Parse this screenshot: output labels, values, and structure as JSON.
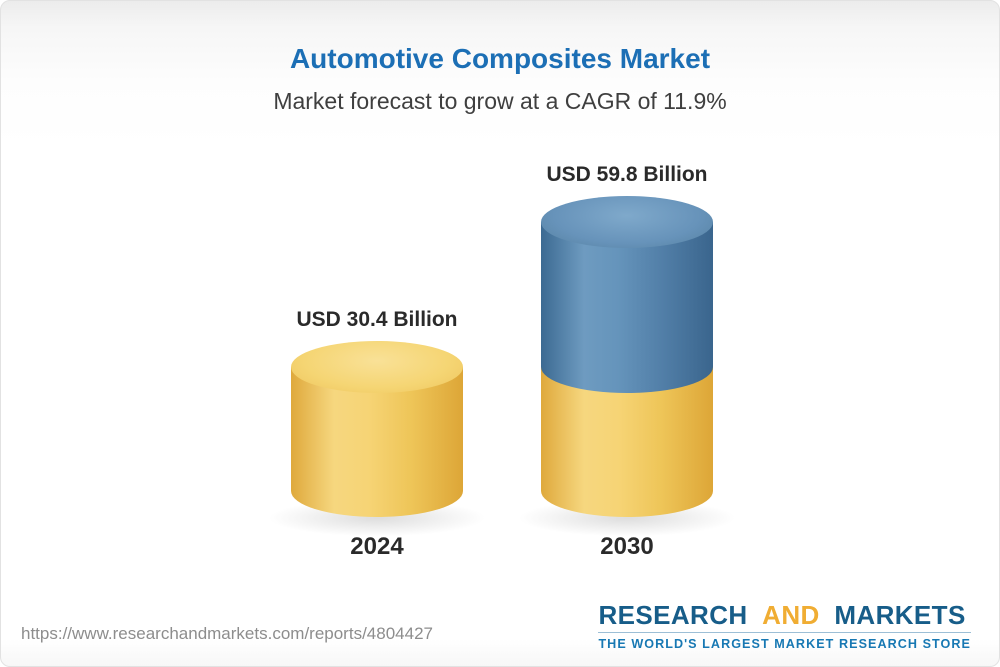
{
  "header": {
    "title": "Automotive Composites Market",
    "subtitle": "Market forecast to grow at a CAGR of 11.9%"
  },
  "chart_data": {
    "type": "bar",
    "bar_style": "3d-cylinder",
    "title": "Automotive Composites Market",
    "subtitle": "Market forecast to grow at a CAGR of 11.9%",
    "categories": [
      "2024",
      "2030"
    ],
    "values": [
      30.4,
      59.8
    ],
    "value_labels": [
      "USD 30.4 Billion",
      "USD 59.8 Billion"
    ],
    "unit": "USD Billion",
    "cagr_percent": 11.9,
    "segment_note": "2030 cylinder shows the 2024 base level in yellow with the growth segment in blue on top",
    "grid": false,
    "legend": false,
    "colors": {
      "bar_yellow": "#F2C85C",
      "bar_blue": "#5585AD"
    }
  },
  "footer": {
    "url": "https://www.researchandmarkets.com/reports/4804427",
    "logo": {
      "research": "RESEARCH",
      "and": "AND",
      "markets": "MARKETS",
      "tagline": "THE WORLD'S LARGEST MARKET RESEARCH STORE"
    }
  },
  "colors": {
    "title_blue": "#1C6FB5",
    "brand_blue": "#175D89",
    "brand_gold": "#F0AD33"
  }
}
